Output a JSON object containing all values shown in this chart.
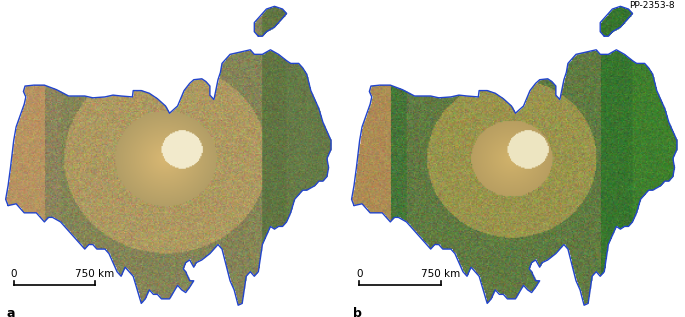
{
  "panel_a_label": "a",
  "panel_b_label": "b",
  "scale_bar_label": "750 km",
  "scale_bar_start": "0",
  "watermark": "PP-2353-8",
  "background_color": "#ffffff",
  "label_fontsize": 9,
  "scale_fontsize": 7.5,
  "watermark_fontsize": 6.5,
  "fig_width": 6.85,
  "fig_height": 3.17,
  "coast_color": "#2244cc",
  "coast_lw": 1.0
}
